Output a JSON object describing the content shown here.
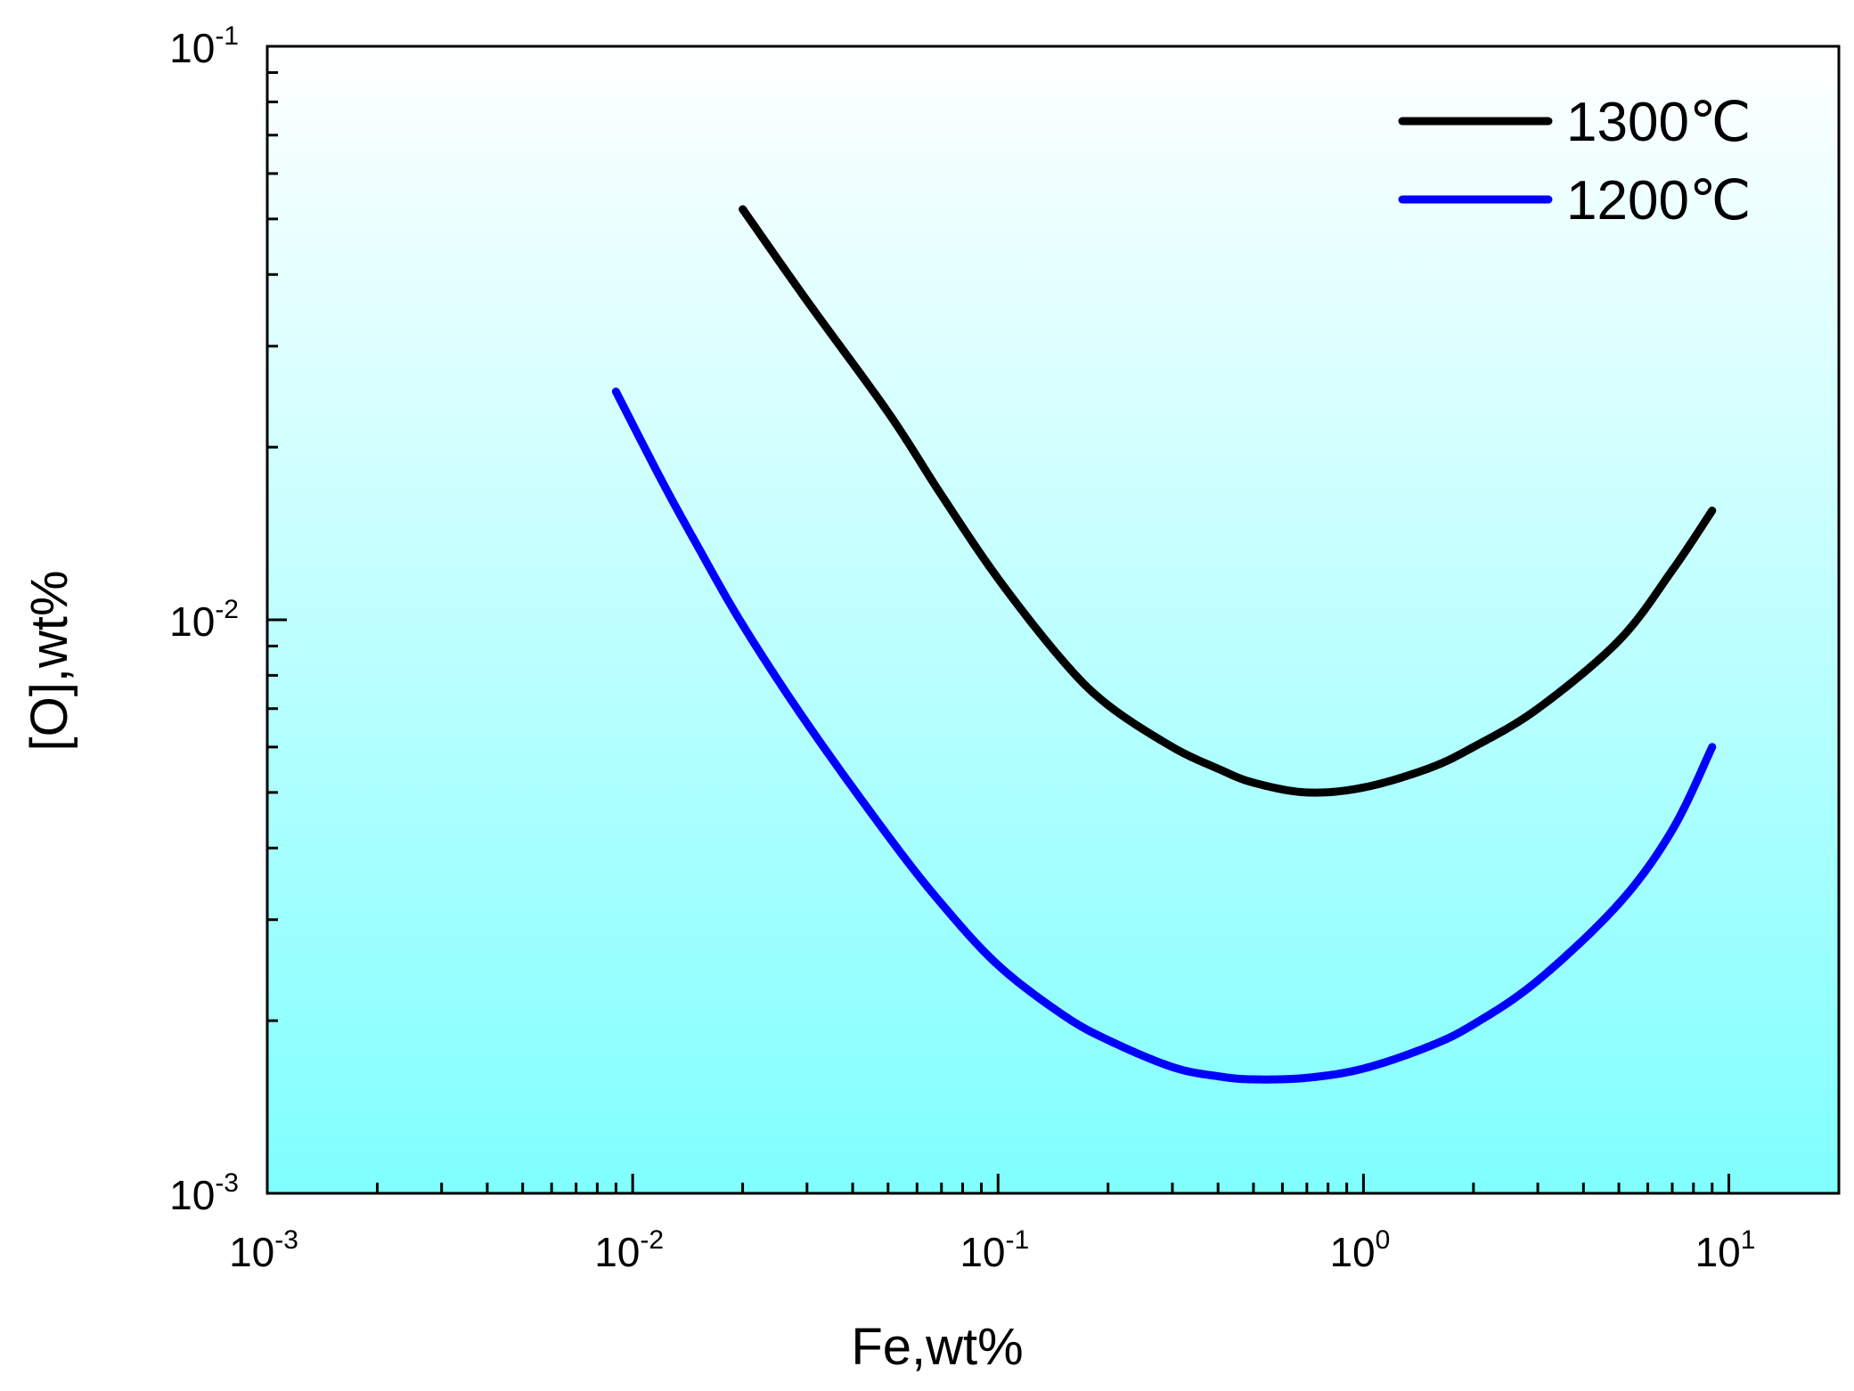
{
  "chart_data": {
    "type": "line",
    "title": "",
    "xlabel": "Fe,wt%",
    "ylabel": "[O],wt%",
    "xscale": "log",
    "yscale": "log",
    "xlim": [
      0.001,
      20
    ],
    "ylim": [
      0.001,
      0.1
    ],
    "x_ticks": [
      {
        "value": 0.001,
        "base": "10",
        "exp": "-3"
      },
      {
        "value": 0.01,
        "base": "10",
        "exp": "-2"
      },
      {
        "value": 0.1,
        "base": "10",
        "exp": "-1"
      },
      {
        "value": 1,
        "base": "10",
        "exp": "0"
      },
      {
        "value": 10,
        "base": "10",
        "exp": "1"
      }
    ],
    "y_ticks": [
      {
        "value": 0.001,
        "base": "10",
        "exp": "-3"
      },
      {
        "value": 0.01,
        "base": "10",
        "exp": "-2"
      },
      {
        "value": 0.1,
        "base": "10",
        "exp": "-1"
      }
    ],
    "legend_position": "top-right",
    "background": {
      "top_color": "#ffffff",
      "bottom_color": "#80ffff"
    },
    "series": [
      {
        "name": "1300℃",
        "color": "#000000",
        "x": [
          0.02,
          0.03,
          0.05,
          0.07,
          0.1,
          0.15,
          0.2,
          0.3,
          0.4,
          0.5,
          0.7,
          1.0,
          1.5,
          2.0,
          3.0,
          5.0,
          7.0,
          9.0
        ],
        "y": [
          0.052,
          0.036,
          0.023,
          0.0165,
          0.0118,
          0.0085,
          0.0071,
          0.006,
          0.0055,
          0.0052,
          0.005,
          0.0051,
          0.0055,
          0.006,
          0.007,
          0.0092,
          0.0122,
          0.0155
        ]
      },
      {
        "name": "1200℃",
        "color": "#0000ff",
        "x": [
          0.009,
          0.012,
          0.015,
          0.02,
          0.03,
          0.05,
          0.07,
          0.1,
          0.15,
          0.2,
          0.3,
          0.4,
          0.5,
          0.7,
          1.0,
          1.5,
          2.0,
          3.0,
          5.0,
          7.0,
          9.0
        ],
        "y": [
          0.025,
          0.0175,
          0.0135,
          0.0098,
          0.0066,
          0.0042,
          0.0032,
          0.0025,
          0.00205,
          0.00185,
          0.00166,
          0.0016,
          0.00158,
          0.00159,
          0.00165,
          0.0018,
          0.00197,
          0.00235,
          0.0032,
          0.0043,
          0.006
        ]
      }
    ]
  }
}
